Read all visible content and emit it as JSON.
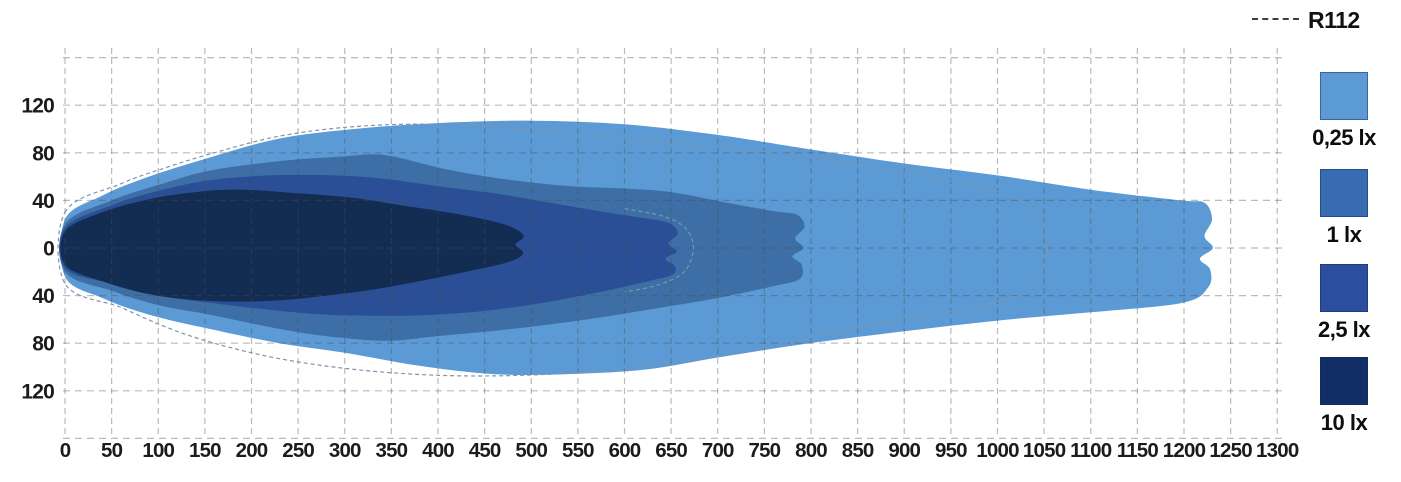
{
  "legend": {
    "r112_label": "R112",
    "items": [
      {
        "label": "0,25 lx",
        "color": "#5B9AD4"
      },
      {
        "label": "1 lx",
        "color": "#396BB0"
      },
      {
        "label": "2,5 lx",
        "color": "#2B4F9E"
      },
      {
        "label": "10 lx",
        "color": "#122E66"
      }
    ]
  },
  "chart_data": {
    "type": "area",
    "title": "",
    "xlabel": "",
    "ylabel": "",
    "units": "lx",
    "grid": true,
    "x_axis": {
      "min": 0,
      "max": 1300,
      "tick_step": 50
    },
    "y_axis": {
      "min": -160,
      "max": 160,
      "tick_step": 40,
      "labels_absolute": true
    },
    "x_ticks": [
      0,
      50,
      100,
      150,
      200,
      250,
      300,
      350,
      400,
      450,
      500,
      550,
      600,
      650,
      700,
      750,
      800,
      850,
      900,
      950,
      1000,
      1050,
      1100,
      1150,
      1200,
      1250,
      1300
    ],
    "y_ticks": [
      {
        "value": 120,
        "label": "120"
      },
      {
        "value": 80,
        "label": "80"
      },
      {
        "value": 40,
        "label": "40"
      },
      {
        "value": 0,
        "label": "0"
      },
      {
        "value": -40,
        "label": "40"
      },
      {
        "value": -80,
        "label": "80"
      },
      {
        "value": -120,
        "label": "120"
      }
    ],
    "grid_y": [
      160,
      120,
      80,
      40,
      0,
      -40,
      -80,
      -120,
      -160
    ],
    "grid_color": "rgba(75,75,75,0.38)",
    "contours": [
      {
        "level": "0,25 lx",
        "color": "#5B9AD4",
        "max_reach_m": 1230,
        "points": [
          [
            0,
            24
          ],
          [
            40,
            44
          ],
          [
            90,
            60
          ],
          [
            155,
            76
          ],
          [
            230,
            92
          ],
          [
            310,
            100
          ],
          [
            400,
            105
          ],
          [
            500,
            107
          ],
          [
            600,
            104
          ],
          [
            700,
            95
          ],
          [
            790,
            84
          ],
          [
            900,
            71
          ],
          [
            1000,
            61
          ],
          [
            1100,
            49
          ],
          [
            1196,
            40
          ],
          [
            1222,
            38
          ],
          [
            1230,
            24
          ],
          [
            1222,
            10
          ],
          [
            1231,
            0
          ],
          [
            1217,
            -9
          ],
          [
            1228,
            -18
          ],
          [
            1226,
            -33
          ],
          [
            1199,
            -46
          ],
          [
            1100,
            -54
          ],
          [
            1000,
            -61
          ],
          [
            900,
            -70
          ],
          [
            790,
            -81
          ],
          [
            700,
            -92
          ],
          [
            624,
            -102
          ],
          [
            540,
            -106
          ],
          [
            460,
            -106
          ],
          [
            380,
            -99
          ],
          [
            300,
            -88
          ],
          [
            230,
            -80
          ],
          [
            155,
            -68
          ],
          [
            90,
            -56
          ],
          [
            40,
            -42
          ],
          [
            0,
            -24
          ]
        ]
      },
      {
        "level": "1 lx",
        "color": "#3D6FA6",
        "max_reach_m": 795,
        "points": [
          [
            0,
            20
          ],
          [
            50,
            40
          ],
          [
            100,
            53
          ],
          [
            155,
            65
          ],
          [
            230,
            73
          ],
          [
            300,
            77
          ],
          [
            344,
            78
          ],
          [
            410,
            66
          ],
          [
            470,
            58
          ],
          [
            540,
            52
          ],
          [
            600,
            50
          ],
          [
            650,
            47
          ],
          [
            710,
            38
          ],
          [
            760,
            31
          ],
          [
            785,
            28
          ],
          [
            793,
            18
          ],
          [
            783,
            8
          ],
          [
            792,
            0
          ],
          [
            780,
            -7
          ],
          [
            790,
            -14
          ],
          [
            788,
            -26
          ],
          [
            760,
            -32
          ],
          [
            700,
            -42
          ],
          [
            640,
            -50
          ],
          [
            560,
            -60
          ],
          [
            480,
            -68
          ],
          [
            400,
            -74
          ],
          [
            344,
            -78
          ],
          [
            280,
            -74
          ],
          [
            230,
            -68
          ],
          [
            155,
            -56
          ],
          [
            100,
            -48
          ],
          [
            50,
            -36
          ],
          [
            0,
            -20
          ]
        ]
      },
      {
        "level": "2,5 lx",
        "color": "#2A4F96",
        "max_reach_m": 657,
        "points": [
          [
            0,
            17
          ],
          [
            50,
            36
          ],
          [
            100,
            48
          ],
          [
            155,
            57
          ],
          [
            220,
            61
          ],
          [
            290,
            61
          ],
          [
            344,
            58
          ],
          [
            400,
            52
          ],
          [
            460,
            46
          ],
          [
            520,
            38
          ],
          [
            580,
            30
          ],
          [
            630,
            24
          ],
          [
            650,
            20
          ],
          [
            657,
            12
          ],
          [
            647,
            4
          ],
          [
            656,
            -3
          ],
          [
            644,
            -9
          ],
          [
            654,
            -15
          ],
          [
            652,
            -22
          ],
          [
            630,
            -27
          ],
          [
            580,
            -36
          ],
          [
            520,
            -45
          ],
          [
            460,
            -52
          ],
          [
            400,
            -56
          ],
          [
            344,
            -57
          ],
          [
            280,
            -56
          ],
          [
            220,
            -52
          ],
          [
            155,
            -46
          ],
          [
            100,
            -40
          ],
          [
            50,
            -30
          ],
          [
            0,
            -17
          ]
        ]
      },
      {
        "level": "10 lx",
        "color": "#132C52",
        "max_reach_m": 492,
        "points": [
          [
            0,
            14
          ],
          [
            40,
            30
          ],
          [
            90,
            41
          ],
          [
            140,
            47
          ],
          [
            190,
            49
          ],
          [
            250,
            46
          ],
          [
            310,
            42
          ],
          [
            360,
            36
          ],
          [
            410,
            30
          ],
          [
            450,
            24
          ],
          [
            478,
            18
          ],
          [
            492,
            10
          ],
          [
            483,
            3
          ],
          [
            491,
            -3
          ],
          [
            487,
            -8
          ],
          [
            470,
            -13
          ],
          [
            430,
            -20
          ],
          [
            380,
            -28
          ],
          [
            330,
            -35
          ],
          [
            280,
            -40
          ],
          [
            230,
            -44
          ],
          [
            180,
            -45
          ],
          [
            130,
            -43
          ],
          [
            85,
            -38
          ],
          [
            40,
            -28
          ],
          [
            0,
            -14
          ]
        ]
      }
    ],
    "r112_reference": {
      "color": "#7E94AE",
      "outer": [
        [
          0,
          30
        ],
        [
          60,
          54
        ],
        [
          110,
          68
        ],
        [
          160,
          80
        ],
        [
          230,
          94
        ],
        [
          310,
          102
        ],
        [
          400,
          104
        ],
        [
          490,
          100
        ],
        [
          580,
          93
        ],
        [
          670,
          87
        ],
        [
          760,
          80
        ],
        [
          850,
          70
        ],
        [
          940,
          58
        ],
        [
          1010,
          45
        ],
        [
          1040,
          32
        ],
        [
          1052,
          14
        ],
        [
          1052,
          -10
        ],
        [
          1038,
          -30
        ],
        [
          1008,
          -43
        ],
        [
          940,
          -55
        ],
        [
          850,
          -67
        ],
        [
          760,
          -82
        ],
        [
          670,
          -95
        ],
        [
          580,
          -103
        ],
        [
          490,
          -107
        ],
        [
          400,
          -107
        ],
        [
          310,
          -102
        ],
        [
          230,
          -93
        ],
        [
          160,
          -80
        ],
        [
          110,
          -67
        ],
        [
          60,
          -50
        ],
        [
          0,
          -30
        ]
      ],
      "inner": [
        [
          600,
          33
        ],
        [
          640,
          27
        ],
        [
          665,
          17
        ],
        [
          674,
          0
        ],
        [
          664,
          -20
        ],
        [
          636,
          -31
        ],
        [
          600,
          -37
        ]
      ]
    }
  }
}
